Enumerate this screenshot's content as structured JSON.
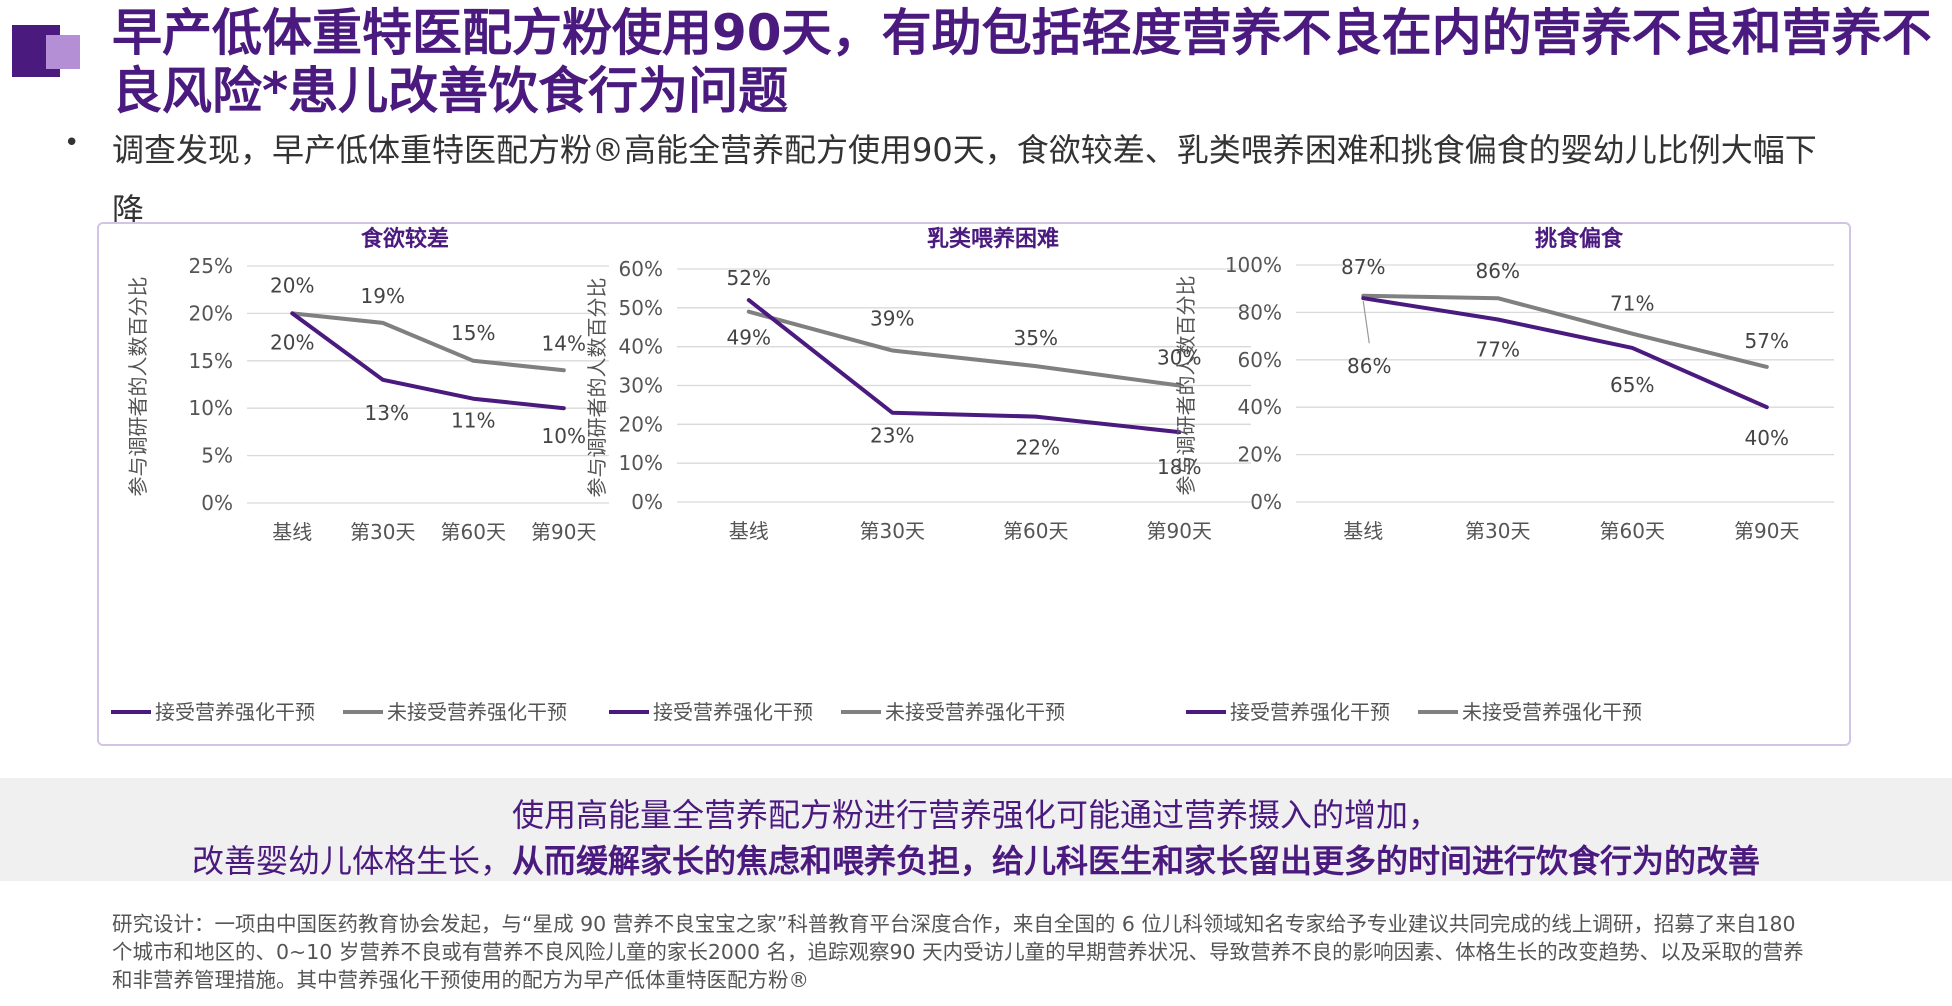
{
  "header": {
    "title": "早产低体重特医配方粉使用90天，有助包括轻度营养不良在内的营养不良和营养不良风险*患儿改善饮食行为问题",
    "bullet": "•",
    "subtitle": "调查发现，早产低体重特医配方粉®高能全营养配方使用90天，食欲较差、乳类喂养困难和挑食偏食的婴幼儿比例大幅下降"
  },
  "colors": {
    "brand": "#4b1a7f",
    "intervention": "#4b1a7f",
    "control": "#808080",
    "panel_border": "#d3c4e6"
  },
  "chart_data": [
    {
      "type": "line",
      "title": "食欲较差",
      "ylabel": "参与调研者的人数百分比",
      "categories": [
        "基线",
        "第30天",
        "第60天",
        "第90天"
      ],
      "yticks": [
        "0%",
        "5%",
        "10%",
        "15%",
        "20%",
        "25%"
      ],
      "ylim": [
        0,
        25
      ],
      "series": [
        {
          "name": "接受营养强化干预",
          "values": [
            20,
            13,
            11,
            10
          ],
          "labels": [
            "20%",
            "13%",
            "11%",
            "10%"
          ]
        },
        {
          "name": "未接受营养强化干预",
          "values": [
            20,
            19,
            15,
            14
          ],
          "labels": [
            "20%",
            "19%",
            "15%",
            "14%"
          ]
        }
      ],
      "legend": "bottom",
      "grid": true
    },
    {
      "type": "line",
      "title": "乳类喂养困难",
      "ylabel": "参与调研者的人数百分比",
      "categories": [
        "基线",
        "第30天",
        "第60天",
        "第90天"
      ],
      "yticks": [
        "0%",
        "10%",
        "20%",
        "30%",
        "40%",
        "50%",
        "60%"
      ],
      "ylim": [
        0,
        60
      ],
      "series": [
        {
          "name": "接受营养强化干预",
          "values": [
            52,
            23,
            22,
            18
          ],
          "labels": [
            "52%",
            "23%",
            "22%",
            "18%"
          ]
        },
        {
          "name": "未接受营养强化干预",
          "values": [
            49,
            39,
            35,
            30
          ],
          "labels": [
            "49%",
            "39%",
            "35%",
            "30%"
          ]
        }
      ],
      "legend": "bottom",
      "grid": true
    },
    {
      "type": "line",
      "title": "挑食偏食",
      "ylabel": "参与调研者的人数百分比",
      "categories": [
        "基线",
        "第30天",
        "第60天",
        "第90天"
      ],
      "yticks": [
        "0%",
        "20%",
        "40%",
        "60%",
        "80%",
        "100%"
      ],
      "ylim": [
        0,
        100
      ],
      "series": [
        {
          "name": "接受营养强化干预",
          "values": [
            86,
            77,
            65,
            40
          ],
          "labels": [
            "86%",
            "77%",
            "65%",
            "40%"
          ]
        },
        {
          "name": "未接受营养强化干预",
          "values": [
            87,
            86,
            71,
            57
          ],
          "labels": [
            "87%",
            "86%",
            "71%",
            "57%"
          ]
        }
      ],
      "legend": "bottom",
      "grid": true
    }
  ],
  "conclusion": {
    "line1": "使用高能量全营养配方粉进行营养强化可能通过营养摄入的增加，",
    "line2_prefix": "改善婴幼儿体格生长，",
    "line2_bold": "从而缓解家长的焦虑和喂养负担，给儿科医生和家长留出更多的时间进行饮食行为的改善"
  },
  "footnote": "研究设计：一项由中国医药教育协会发起，与“星成 90 营养不良宝宝之家”科普教育平台深度合作，来自全国的 6 位儿科领域知名专家给予专业建议共同完成的线上调研，招募了来自180 个城市和地区的、0~10 岁营养不良或有营养不良风险儿童的家长2000 名，追踪观察90 天内受访儿童的早期营养状况、导致营养不良的影响因素、体格生长的改变趋势、以及采取的营养和非营养管理措施。其中营养强化干预使用的配方为早产低体重特医配方粉®"
}
